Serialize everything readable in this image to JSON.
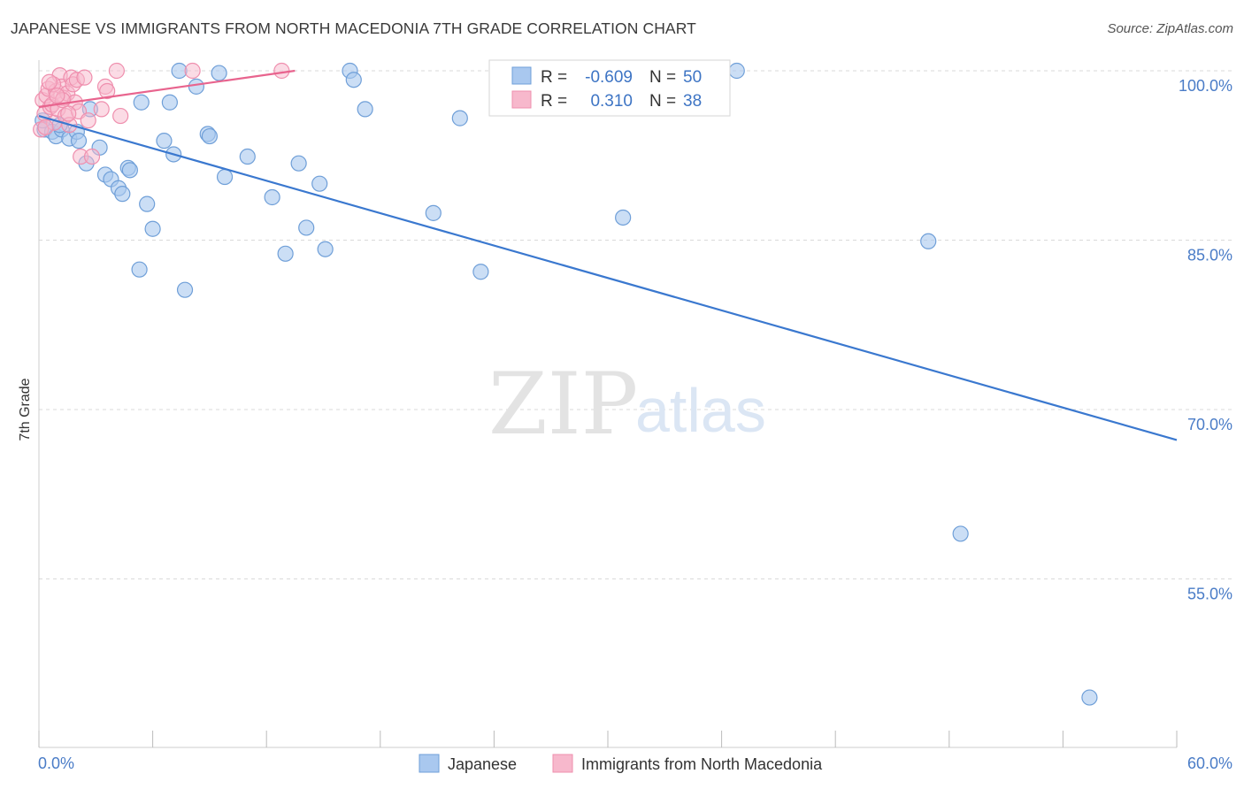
{
  "title": "JAPANESE VS IMMIGRANTS FROM NORTH MACEDONIA 7TH GRADE CORRELATION CHART",
  "source": "Source: ZipAtlas.com",
  "watermark": {
    "zip": "ZIP",
    "atlas": "atlas"
  },
  "colors": {
    "japanese_fill": "#a9c8ef",
    "japanese_stroke": "#6f9fd8",
    "japanese_line": "#3a78cf",
    "macedonia_fill": "#f7b8cc",
    "macedonia_stroke": "#ef8fae",
    "macedonia_line": "#e8648e",
    "grid": "#d9d9d9",
    "axis_text": "#4a7cc7"
  },
  "legend": {
    "rows": [
      {
        "r_label": "R =",
        "r_value": "-0.609",
        "n_label": "N =",
        "n_value": "50"
      },
      {
        "r_label": "R =",
        "r_value": "0.310",
        "n_label": "N =",
        "n_value": "38"
      }
    ]
  },
  "bottom_legend": [
    "Japanese",
    "Immigrants from North Macedonia"
  ],
  "chart_data": {
    "type": "scatter",
    "title": "JAPANESE VS IMMIGRANTS FROM NORTH MACEDONIA 7TH GRADE CORRELATION CHART",
    "xlabel": "",
    "ylabel": "7th Grade",
    "xlim": [
      0,
      60
    ],
    "ylim": [
      42,
      101
    ],
    "x_tick_labels": [
      "0.0%",
      "60.0%"
    ],
    "y_ticks": [
      100,
      85,
      70,
      55
    ],
    "y_tick_labels": [
      "100.0%",
      "85.0%",
      "70.0%",
      "55.0%"
    ],
    "grid": true,
    "legend_position": "top-center",
    "series": [
      {
        "name": "Japanese",
        "stats": {
          "R": -0.609,
          "N": 50
        },
        "trend": {
          "x": [
            0,
            60
          ],
          "y": [
            96.0,
            67.3
          ]
        },
        "points": [
          [
            0.3,
            94.8
          ],
          [
            0.7,
            94.6
          ],
          [
            0.9,
            94.2
          ],
          [
            1.2,
            94.8
          ],
          [
            1.6,
            94.0
          ],
          [
            2.0,
            94.6
          ],
          [
            2.1,
            93.8
          ],
          [
            2.5,
            91.8
          ],
          [
            2.7,
            96.6
          ],
          [
            3.2,
            93.2
          ],
          [
            3.5,
            90.8
          ],
          [
            3.8,
            90.4
          ],
          [
            4.2,
            89.6
          ],
          [
            4.4,
            89.1
          ],
          [
            4.7,
            91.4
          ],
          [
            4.8,
            91.2
          ],
          [
            5.4,
            97.2
          ],
          [
            5.7,
            88.2
          ],
          [
            6.0,
            86.0
          ],
          [
            5.3,
            82.4
          ],
          [
            6.6,
            93.8
          ],
          [
            6.9,
            97.2
          ],
          [
            7.1,
            92.6
          ],
          [
            7.4,
            100.0
          ],
          [
            7.7,
            80.6
          ],
          [
            8.3,
            98.6
          ],
          [
            8.9,
            94.4
          ],
          [
            9.0,
            94.2
          ],
          [
            9.5,
            99.8
          ],
          [
            9.8,
            90.6
          ],
          [
            11.0,
            92.4
          ],
          [
            12.3,
            88.8
          ],
          [
            13.0,
            83.8
          ],
          [
            13.7,
            91.8
          ],
          [
            14.1,
            86.1
          ],
          [
            14.8,
            90.0
          ],
          [
            15.1,
            84.2
          ],
          [
            16.4,
            100.0
          ],
          [
            16.6,
            99.2
          ],
          [
            17.2,
            96.6
          ],
          [
            20.8,
            87.4
          ],
          [
            22.2,
            95.8
          ],
          [
            23.3,
            82.2
          ],
          [
            30.8,
            87.0
          ],
          [
            36.8,
            100.0
          ],
          [
            46.9,
            84.9
          ],
          [
            48.6,
            59.0
          ],
          [
            55.4,
            44.5
          ],
          [
            0.2,
            95.6
          ],
          [
            1.1,
            95.2
          ]
        ]
      },
      {
        "name": "Immigrants from North Macedonia",
        "stats": {
          "R": 0.31,
          "N": 38
        },
        "trend": {
          "x": [
            0,
            13.5
          ],
          "y": [
            96.8,
            100.0
          ]
        },
        "points": [
          [
            0.1,
            94.8
          ],
          [
            0.2,
            97.4
          ],
          [
            0.3,
            96.2
          ],
          [
            0.4,
            97.8
          ],
          [
            0.5,
            98.4
          ],
          [
            0.6,
            96.8
          ],
          [
            0.7,
            97.0
          ],
          [
            0.8,
            95.4
          ],
          [
            0.9,
            98.2
          ],
          [
            1.0,
            96.6
          ],
          [
            1.1,
            99.6
          ],
          [
            1.2,
            98.6
          ],
          [
            1.3,
            97.6
          ],
          [
            1.4,
            96.0
          ],
          [
            1.5,
            98.0
          ],
          [
            1.6,
            95.2
          ],
          [
            1.7,
            99.4
          ],
          [
            1.8,
            98.8
          ],
          [
            1.9,
            97.2
          ],
          [
            2.0,
            99.2
          ],
          [
            2.1,
            96.4
          ],
          [
            2.2,
            92.4
          ],
          [
            2.4,
            99.4
          ],
          [
            2.6,
            95.6
          ],
          [
            2.8,
            92.4
          ],
          [
            3.3,
            96.6
          ],
          [
            3.5,
            98.6
          ],
          [
            3.6,
            98.2
          ],
          [
            4.1,
            100.0
          ],
          [
            4.3,
            96.0
          ],
          [
            8.1,
            100.0
          ],
          [
            12.8,
            100.0
          ],
          [
            0.35,
            95.0
          ],
          [
            0.75,
            98.8
          ],
          [
            1.25,
            97.4
          ],
          [
            1.55,
            96.2
          ],
          [
            0.55,
            99.0
          ],
          [
            0.95,
            97.8
          ]
        ]
      }
    ]
  }
}
